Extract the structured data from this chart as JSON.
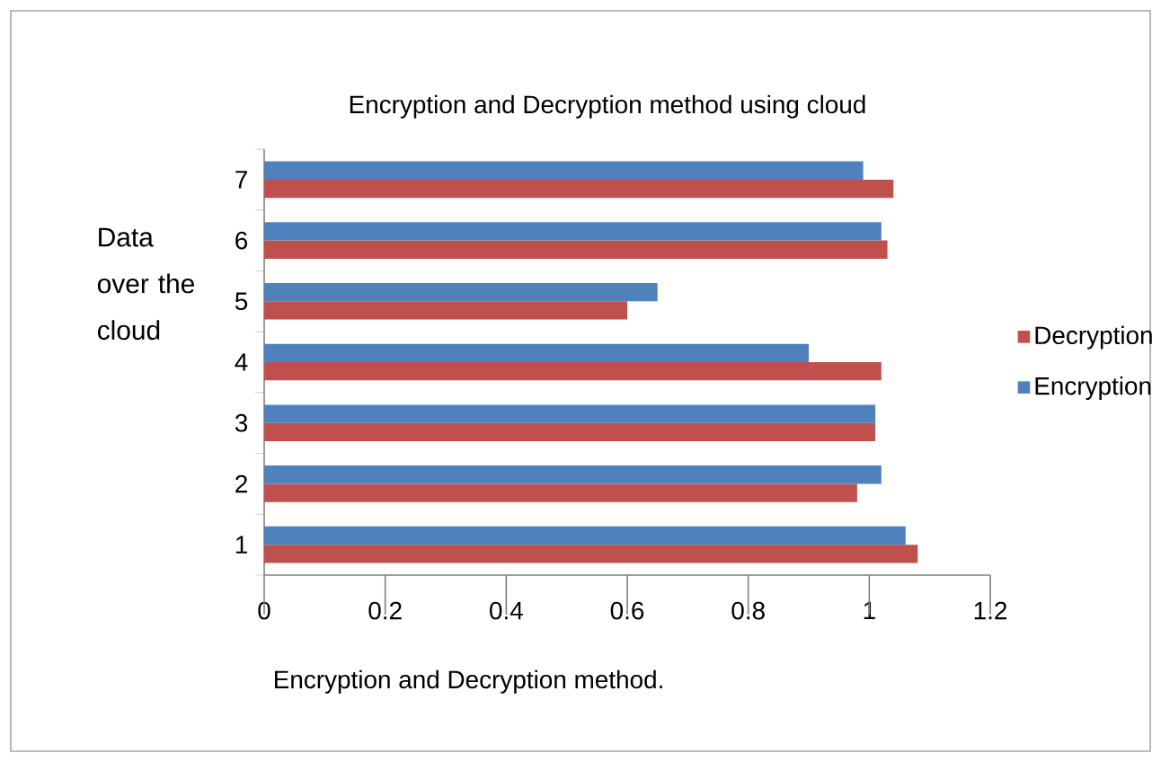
{
  "chart_data": {
    "type": "bar",
    "orientation": "horizontal",
    "title": "Encryption and Decryption method  using cloud",
    "xlabel": "Encryption and Decryption method.",
    "ylabel": "Data over the cloud",
    "categories": [
      "7",
      "6",
      "5",
      "4",
      "3",
      "2",
      "1"
    ],
    "series": [
      {
        "name": "Encryption",
        "color": "#4f81bd",
        "values": [
          0.99,
          1.02,
          0.65,
          0.9,
          1.01,
          1.02,
          1.06
        ]
      },
      {
        "name": "Decryption",
        "color": "#c0504d",
        "values": [
          1.04,
          1.03,
          0.6,
          1.02,
          1.01,
          0.98,
          1.08
        ]
      }
    ],
    "xlim": [
      0,
      1.2
    ],
    "xticks": [
      0,
      0.2,
      0.4,
      0.6,
      0.8,
      1,
      1.2
    ],
    "grid": false,
    "legend": "right"
  }
}
